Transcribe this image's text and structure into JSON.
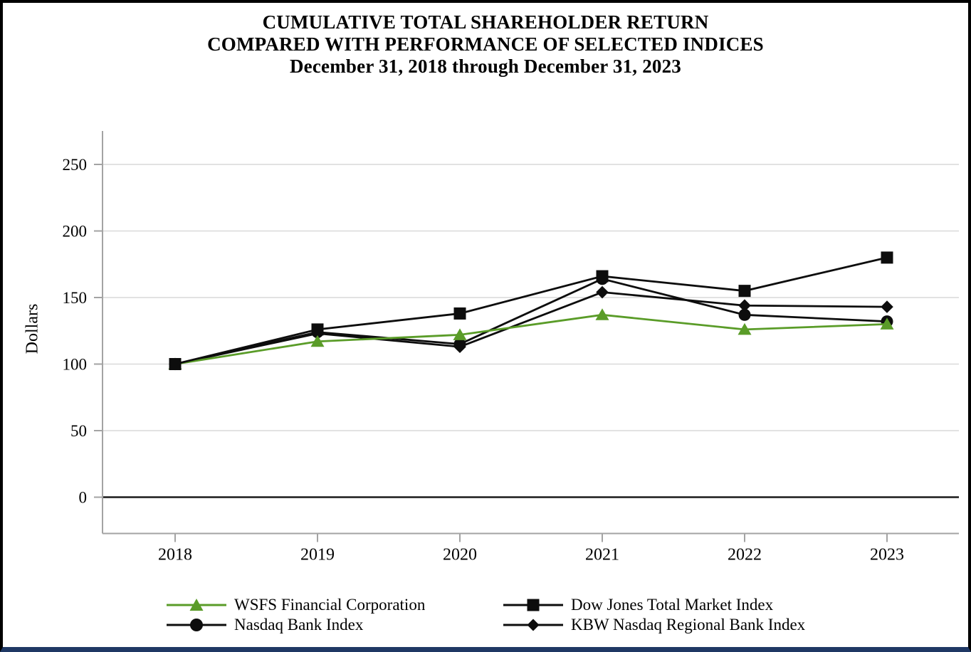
{
  "chart_data": {
    "type": "line",
    "title": "CUMULATIVE TOTAL SHAREHOLDER RETURN",
    "subtitle": "COMPARED WITH PERFORMANCE OF SELECTED INDICES",
    "period": "December 31, 2018 through December 31, 2023",
    "ylabel": "Dollars",
    "xlabel": "",
    "x": [
      "2018",
      "2019",
      "2020",
      "2021",
      "2022",
      "2023"
    ],
    "yticks": [
      "0",
      "50",
      "100",
      "150",
      "200",
      "250"
    ],
    "ylim": [
      -27,
      278
    ],
    "grid": "horizontal-light-gray, dark zero baseline",
    "legend_position": "bottom-two-columns",
    "series": [
      {
        "name": "WSFS Financial Corporation",
        "marker": "triangle",
        "color": "#5a9c28",
        "values": [
          100,
          117,
          122,
          137,
          126,
          130
        ]
      },
      {
        "name": "Dow Jones Total Market Index",
        "marker": "square",
        "color": "#0d0d0d",
        "values": [
          100,
          126,
          138,
          166,
          155,
          180
        ]
      },
      {
        "name": "Nasdaq Bank Index",
        "marker": "circle",
        "color": "#0d0d0d",
        "values": [
          100,
          124,
          115,
          164,
          137,
          132
        ]
      },
      {
        "name": "KBW Nasdaq Regional Bank Index",
        "marker": "diamond",
        "color": "#0d0d0d",
        "values": [
          100,
          123,
          113,
          154,
          144,
          143
        ]
      }
    ]
  }
}
